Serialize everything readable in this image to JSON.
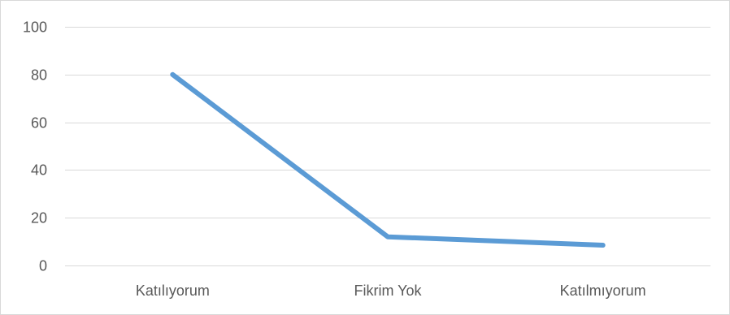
{
  "chart_data": {
    "type": "line",
    "categories": [
      "Katılıyorum",
      "Fikrim Yok",
      "Katılmıyorum"
    ],
    "series": [
      {
        "values": [
          80,
          12,
          8.5
        ],
        "color": "#5b9bd5"
      }
    ],
    "ylim": [
      0,
      100
    ],
    "yticks": [
      0,
      20,
      40,
      60,
      80,
      100
    ],
    "title": "",
    "xlabel": "",
    "ylabel": "",
    "grid": true,
    "grid_color": "#d9d9d9",
    "legend": "none"
  }
}
